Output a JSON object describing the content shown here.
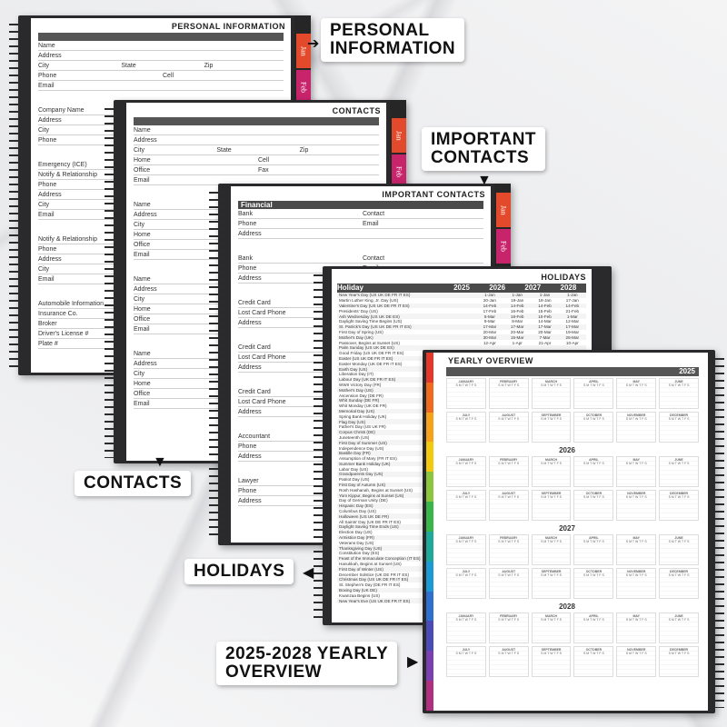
{
  "callouts": {
    "personal": [
      "PERSONAL",
      "INFORMATION"
    ],
    "important": [
      "IMPORTANT",
      "CONTACTS"
    ],
    "contacts": "CONTACTS",
    "holidays": "HOLIDAYS",
    "yearly": [
      "2025-2028 YEARLY",
      "OVERVIEW"
    ]
  },
  "tabs": [
    "Jan",
    "Feb"
  ],
  "personal_page": {
    "title": "PERSONAL INFORMATION",
    "fields": [
      "Name",
      "Address",
      [
        "City",
        "State",
        "Zip"
      ],
      [
        "Phone",
        "Cell"
      ],
      "Email",
      "",
      "",
      "Company Name",
      "Address",
      "City",
      "Phone",
      "",
      "",
      "Emergency (ICE)",
      "Notify & Relationship",
      "Phone",
      "Address",
      "City",
      "Email",
      "",
      "",
      "Notify & Relationship",
      "Phone",
      "Address",
      "City",
      "Email",
      "",
      "",
      "Automobile Information",
      "Insurance Co.",
      "Broker",
      "Driver's License #",
      "Plate #"
    ]
  },
  "contacts_page": {
    "title": "CONTACTS",
    "fields": [
      "Name",
      "Address",
      [
        "City",
        "State",
        "Zip"
      ],
      [
        "Home",
        "Cell"
      ],
      [
        "Office",
        "Fax"
      ],
      "Email",
      "",
      "",
      "Name",
      "Address",
      "City",
      "Home",
      "Office",
      "Email",
      "",
      "",
      "Name",
      "Address",
      "City",
      "Home",
      "Office",
      "Email",
      "",
      "",
      "Name",
      "Address",
      "City",
      "Home",
      "Office",
      "Email"
    ]
  },
  "important_page": {
    "title": "IMPORTANT CONTACTS",
    "section": "Financial",
    "fields": [
      [
        "Bank",
        "Contact"
      ],
      [
        "Phone",
        "Email"
      ],
      "Address",
      "",
      "",
      [
        "Bank",
        "Contact"
      ],
      [
        "Phone",
        "Email"
      ],
      "Address",
      "",
      "",
      "Credit Card",
      "Lost Card Phone",
      "Address",
      "",
      "",
      "Credit Card",
      "Lost Card Phone",
      "Address",
      "",
      "",
      "Credit Card",
      "Lost Card Phone",
      "Address",
      "",
      "",
      "Accountant",
      "Phone",
      "Address",
      "",
      "",
      "Lawyer",
      "Phone",
      "Address"
    ]
  },
  "holidays_page": {
    "title": "HOLIDAYS",
    "header": [
      "Holiday",
      "2025",
      "2026",
      "2027",
      "2028"
    ],
    "rows": [
      [
        "New Year's Day (US UK DE FR IT ES)",
        "1-Jan",
        "1-Jan",
        "1-Jan",
        "1-Jan"
      ],
      [
        "Martin Luther King, Jr. Day (US)",
        "20-Jan",
        "19-Jan",
        "18-Jan",
        "17-Jan"
      ],
      [
        "Valentine's Day (US UK DE FR IT ES)",
        "14-Feb",
        "14-Feb",
        "14-Feb",
        "14-Feb"
      ],
      [
        "Presidents' Day (US)",
        "17-Feb",
        "16-Feb",
        "15-Feb",
        "21-Feb"
      ],
      [
        "Ash Wednesday (US UK DE ES)",
        "5-Mar",
        "18-Feb",
        "10-Feb",
        "1-Mar"
      ],
      [
        "Daylight Saving Time Begins (US)",
        "9-Mar",
        "8-Mar",
        "14-Mar",
        "12-Mar"
      ],
      [
        "St. Patrick's Day (US UK DE FR IT ES)",
        "17-Mar",
        "17-Mar",
        "17-Mar",
        "17-Mar"
      ],
      [
        "First Day of Spring (US)",
        "20-Mar",
        "20-Mar",
        "20-Mar",
        "19-Mar"
      ],
      [
        "Mother's Day (UK)",
        "30-Mar",
        "15-Mar",
        "7-Mar",
        "26-Mar"
      ],
      [
        "Passover, Begins at Sunset (US)",
        "12-Apr",
        "1-Apr",
        "21-Apr",
        "10-Apr"
      ],
      [
        "Palm Sunday (US UK DE ES)",
        "",
        "",
        "",
        ""
      ],
      [
        "Good Friday (US UK DE FR IT ES)",
        "",
        "",
        "",
        ""
      ],
      [
        "Easter (US UK DE FR IT ES)",
        "",
        "",
        "",
        ""
      ],
      [
        "Easter Monday (UK DE FR IT ES)",
        "",
        "",
        "",
        ""
      ],
      [
        "Earth Day (US)",
        "",
        "",
        "",
        ""
      ],
      [
        "Liberation Day (IT)",
        "",
        "",
        "",
        ""
      ],
      [
        "Labour Day (UK DE FR IT ES)",
        "",
        "",
        "",
        ""
      ],
      [
        "WWII Victory Day (FR)",
        "",
        "",
        "",
        ""
      ],
      [
        "Mother's Day (US)",
        "",
        "",
        "",
        ""
      ],
      [
        "Ascension Day (DE FR)",
        "",
        "",
        "",
        ""
      ],
      [
        "Whit Sunday (DE FR)",
        "",
        "",
        "",
        ""
      ],
      [
        "Whit Monday (UK DE FR)",
        "",
        "",
        "",
        ""
      ],
      [
        "Memorial Day (US)",
        "",
        "",
        "",
        ""
      ],
      [
        "Spring Bank Holiday (UK)",
        "",
        "",
        "",
        ""
      ],
      [
        "Flag Day (US)",
        "",
        "",
        "",
        ""
      ],
      [
        "Father's Day (US UK FR)",
        "",
        "",
        "",
        ""
      ],
      [
        "Corpus Christi (DE)",
        "",
        "",
        "",
        ""
      ],
      [
        "Juneteenth (US)",
        "",
        "",
        "",
        ""
      ],
      [
        "First Day of Summer (US)",
        "",
        "",
        "",
        ""
      ],
      [
        "Independence Day (US)",
        "",
        "",
        "",
        ""
      ],
      [
        "Bastille Day (FR)",
        "",
        "",
        "",
        ""
      ],
      [
        "Assumption of Mary (FR IT ES)",
        "",
        "",
        "",
        ""
      ],
      [
        "Summer Bank Holiday (UK)",
        "",
        "",
        "",
        ""
      ],
      [
        "Labor Day (US)",
        "",
        "",
        "",
        ""
      ],
      [
        "Grandparents Day (US)",
        "",
        "",
        "",
        ""
      ],
      [
        "Patriot Day (US)",
        "",
        "",
        "",
        ""
      ],
      [
        "First Day of Autumn (US)",
        "",
        "",
        "",
        ""
      ],
      [
        "Rosh Hashanah, Begins at Sunset (US)",
        "",
        "",
        "",
        ""
      ],
      [
        "Yom Kippur, Begins at Sunset (US)",
        "",
        "",
        "",
        ""
      ],
      [
        "Day of German Unity (DE)",
        "",
        "",
        "",
        ""
      ],
      [
        "Hispanic Day (ES)",
        "",
        "",
        "",
        ""
      ],
      [
        "Columbus Day (US)",
        "",
        "",
        "",
        ""
      ],
      [
        "Halloween (US UK DE FR)",
        "",
        "",
        "",
        ""
      ],
      [
        "All Saints' Day (UK DE FR IT ES)",
        "",
        "",
        "",
        ""
      ],
      [
        "Daylight Saving Time Ends (US)",
        "",
        "",
        "",
        ""
      ],
      [
        "Election Day (US)",
        "",
        "",
        "",
        ""
      ],
      [
        "Armistice Day (FR)",
        "",
        "",
        "",
        ""
      ],
      [
        "Veterans Day (US)",
        "",
        "",
        "",
        ""
      ],
      [
        "Thanksgiving Day (US)",
        "",
        "",
        "",
        ""
      ],
      [
        "Constitution Day (ES)",
        "",
        "",
        "",
        ""
      ],
      [
        "Feast of the Immaculate Conception (IT ES)",
        "",
        "",
        "",
        ""
      ],
      [
        "Hanukkah, Begins at Sunset (US)",
        "",
        "",
        "",
        ""
      ],
      [
        "First Day of Winter (US)",
        "",
        "",
        "",
        ""
      ],
      [
        "December Solstice (UK DE FR IT ES)",
        "",
        "",
        "",
        ""
      ],
      [
        "Christmas Day (US UK DE FR IT ES)",
        "",
        "",
        "",
        ""
      ],
      [
        "St. Stephen's Day (DE FR IT ES)",
        "",
        "",
        "",
        ""
      ],
      [
        "Boxing Day (UK DE)",
        "",
        "",
        "",
        ""
      ],
      [
        "Kwanzaa Begins (US)",
        "",
        "",
        "",
        ""
      ],
      [
        "New Year's Eve (US UK DE FR IT ES)",
        "",
        "",
        "",
        ""
      ]
    ]
  },
  "yearly_page": {
    "title": "YEARLY OVERVIEW",
    "years": [
      "2025",
      "2026",
      "2027",
      "2028"
    ],
    "months": [
      "JANUARY",
      "FEBRUARY",
      "MARCH",
      "APRIL",
      "MAY",
      "JUNE",
      "JULY",
      "AUGUST",
      "SEPTEMBER",
      "OCTOBER",
      "NOVEMBER",
      "DECEMBER"
    ],
    "weekdays": "S M T W T F S",
    "tab_colors": [
      "#e5382a",
      "#f06a1f",
      "#f6a21a",
      "#f2c811",
      "#8cc63f",
      "#39b54a",
      "#1fa99b",
      "#1c9ad6",
      "#2f6fd0",
      "#4b4bb8",
      "#7a3fb0",
      "#b0307f"
    ]
  },
  "colors": {
    "book": "#2a2a2c",
    "tab_jan": "#e24a2b",
    "tab_feb": "#c8246b",
    "header_bar": "#555555"
  }
}
